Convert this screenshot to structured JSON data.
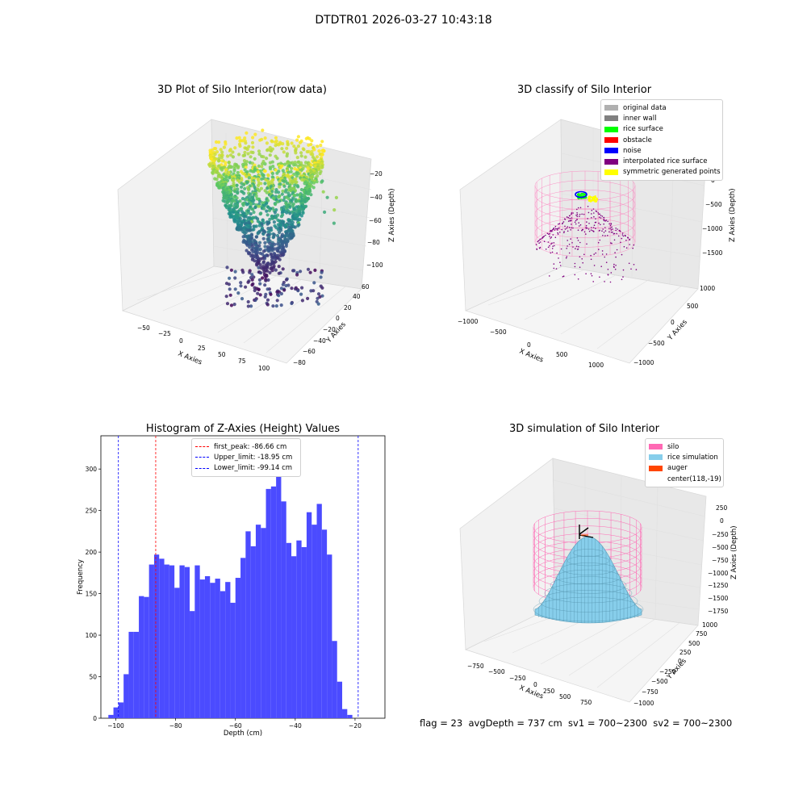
{
  "figure": {
    "suptitle": "DTDTR01 2026-03-27 10:43:18",
    "footer": "flag = 23  avgDepth = 737 cm  sv1 = 700~2300  sv2 = 700~2300"
  },
  "panels": {
    "raw": {
      "title": "3D Plot of Silo Interior(row data)",
      "xlabel": "X Axies",
      "ylabel": "Y Axies",
      "zlabel": "Z Axies (Depth)",
      "x_ticks": [
        "−50",
        "−25",
        "0",
        "25",
        "50",
        "75",
        "100"
      ],
      "y_ticks": [
        "−80",
        "−60",
        "−40",
        "−20",
        "0",
        "20",
        "40",
        "60"
      ],
      "z_ticks": [
        "−20",
        "−40",
        "−60",
        "−80",
        "−100"
      ]
    },
    "classify": {
      "title": "3D classify of Silo Interior",
      "xlabel": "X Axies",
      "ylabel": "Y Axies",
      "zlabel": "Z Axies (Depth)",
      "x_ticks": [
        "−1000",
        "−500",
        "0",
        "500",
        "1000"
      ],
      "y_ticks": [
        "−1000",
        "−500",
        "0",
        "500",
        "1000"
      ],
      "z_ticks": [
        "0",
        "−500",
        "−1000",
        "−1500"
      ]
    },
    "simulation": {
      "title": "3D simulation of Silo Interior",
      "xlabel": "X Axies",
      "ylabel": "Y Axies",
      "zlabel": "Z Axies (Depth)",
      "x_ticks": [
        "−750",
        "−500",
        "−250",
        "0",
        "250",
        "500",
        "750"
      ],
      "y_ticks": [
        "−1000",
        "−750",
        "−500",
        "−250",
        "0",
        "250",
        "500",
        "750",
        "1000"
      ],
      "z_ticks": [
        "250",
        "0",
        "−250",
        "−500",
        "−750",
        "−1000",
        "−1250",
        "−1500",
        "−1750"
      ]
    }
  },
  "legends": {
    "classify": [
      {
        "label": "original data",
        "color": "#b0b0b0"
      },
      {
        "label": "inner wall",
        "color": "#808080"
      },
      {
        "label": "rice surface",
        "color": "#00ff00"
      },
      {
        "label": "obstacle",
        "color": "#ff0000"
      },
      {
        "label": "noise",
        "color": "#0000ff"
      },
      {
        "label": "interpolated rice surface",
        "color": "#800080"
      },
      {
        "label": "symmetric generated points",
        "color": "#ffff00"
      }
    ],
    "simulation": [
      {
        "label": "silo",
        "color": "#ff69b4"
      },
      {
        "label": "rice simulation",
        "color": "#87ceeb"
      },
      {
        "label": "auger",
        "color": "#ff4500"
      },
      {
        "label": "center(118,-19)",
        "color": ""
      }
    ],
    "histogram": [
      {
        "label": "first_peak: -86.66 cm",
        "color": "#ff0000"
      },
      {
        "label": "Upper_limit: -18.95 cm",
        "color": "#0000ff"
      },
      {
        "label": "Lower_limit: -99.14 cm",
        "color": "#0000ff"
      }
    ]
  },
  "chart_data": [
    {
      "type": "scatter",
      "title": "3D Plot of Silo Interior(row data)",
      "xlabel": "X Axies",
      "ylabel": "Y Axies",
      "zlabel": "Z Axies (Depth)",
      "xlim": [
        -65,
        105
      ],
      "ylim": [
        -85,
        65
      ],
      "zlim": [
        -110,
        -15
      ],
      "colormap": "viridis"
    },
    {
      "type": "scatter",
      "title": "3D classify of Silo Interior",
      "xlabel": "X Axies",
      "ylabel": "Y Axies",
      "zlabel": "Z Axies (Depth)",
      "xlim": [
        -1100,
        1100
      ],
      "ylim": [
        -1100,
        1100
      ],
      "zlim": [
        -1800,
        100
      ],
      "legend_position": "top-right"
    },
    {
      "type": "histogram",
      "title": "Histogram of Z-Axies (Height) Values",
      "xlabel": "Depth (cm)",
      "ylabel": "Frequency",
      "xlim": [
        -105,
        -10
      ],
      "ylim": [
        0,
        340
      ],
      "x_ticks": [
        -100,
        -80,
        -60,
        -40,
        -20
      ],
      "y_ticks": [
        0,
        50,
        100,
        150,
        200,
        250,
        300
      ],
      "x_tick_labels": [
        "−100",
        "−80",
        "−60",
        "−40",
        "−20"
      ],
      "y_tick_labels": [
        "0",
        "50",
        "100",
        "150",
        "200",
        "250",
        "300"
      ],
      "bar_color": "#4b4bff",
      "bin_start": -102.5,
      "bin_width": 1.7,
      "values": [
        4,
        13,
        19,
        53,
        104,
        104,
        147,
        146,
        185,
        197,
        192,
        185,
        184,
        157,
        184,
        182,
        129,
        184,
        167,
        171,
        163,
        168,
        153,
        164,
        139,
        169,
        193,
        225,
        207,
        233,
        229,
        276,
        279,
        325,
        261,
        211,
        195,
        214,
        206,
        248,
        233,
        258,
        227,
        197,
        93,
        44,
        11,
        4
      ],
      "vlines": [
        {
          "x": -86.66,
          "color": "#ff0000",
          "label": "first_peak: -86.66 cm"
        },
        {
          "x": -18.95,
          "color": "#0000ff",
          "label": "Upper_limit: -18.95 cm"
        },
        {
          "x": -99.14,
          "color": "#0000ff",
          "label": "Lower_limit: -99.14 cm"
        }
      ],
      "legend_position": "top-center"
    },
    {
      "type": "area",
      "title": "3D simulation of Silo Interior",
      "xlabel": "X Axies",
      "ylabel": "Y Axies",
      "zlabel": "Z Axies (Depth)",
      "xlim": [
        -900,
        900
      ],
      "ylim": [
        -1100,
        1100
      ],
      "zlim": [
        -1800,
        350
      ],
      "legend_position": "top-right"
    }
  ]
}
